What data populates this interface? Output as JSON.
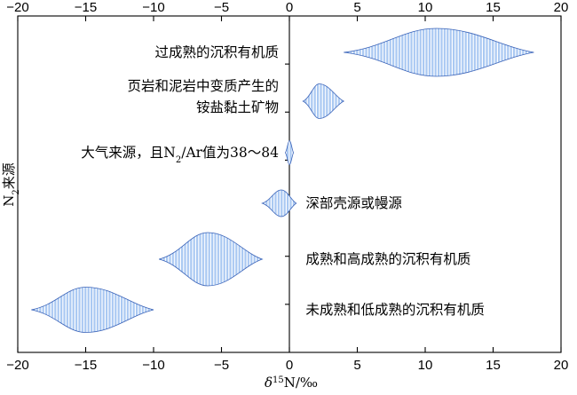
{
  "chart_data": {
    "type": "range",
    "title": "",
    "xlabel": {
      "prefix": "δ",
      "sup": "15",
      "rest": "N/‰"
    },
    "ylabel": {
      "main": "N",
      "sub": "2",
      "rest": "来源"
    },
    "xlim": [
      -20,
      20
    ],
    "xticks": [
      -20,
      -15,
      -10,
      -5,
      0,
      5,
      10,
      15,
      20
    ],
    "grid": false,
    "colors": {
      "fill": "#a9c8f2",
      "stripe": "#ffffff",
      "edge": "#3a63b8"
    },
    "series": [
      {
        "label": [
          "过成熟的沉积有机质"
        ],
        "label_x": 0,
        "min": 4,
        "max": 18,
        "peak": 10.8,
        "thickness": 0.9
      },
      {
        "label": [
          "页岩和泥岩中变质产生的",
          "铵盐黏土矿物"
        ],
        "label_x": 0,
        "min": 1,
        "max": 4,
        "peak": 2.2,
        "thickness": 0.65
      },
      {
        "label": [
          "大气来源，且N",
          "2",
          "/Ar值为38～84"
        ],
        "label_x": 0,
        "min": -0.3,
        "max": 0.3,
        "peak": 0,
        "thickness": 0.45,
        "sub_label": true
      },
      {
        "label": [
          "深部壳源或幔源"
        ],
        "label_x": 1.2,
        "min": -2,
        "max": 0.5,
        "peak": -0.6,
        "thickness": 0.5
      },
      {
        "label": [
          "成熟和高成熟的沉积有机质"
        ],
        "label_x": 1.2,
        "min": -9.6,
        "max": -2,
        "peak": -6,
        "thickness": 1.0
      },
      {
        "label": [
          "未成熟和低成熟的沉积有机质"
        ],
        "label_x": 1.2,
        "min": -19,
        "max": -10,
        "peak": -15,
        "thickness": 0.85
      }
    ]
  }
}
